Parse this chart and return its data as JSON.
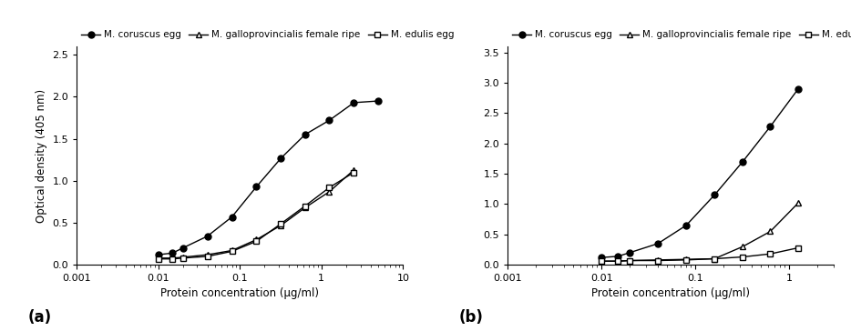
{
  "panel_a": {
    "coruscus_egg_x": [
      0.01,
      0.015,
      0.02,
      0.04,
      0.08,
      0.16,
      0.32,
      0.63,
      1.25,
      2.5,
      5.0
    ],
    "coruscus_egg_y": [
      0.12,
      0.14,
      0.2,
      0.34,
      0.57,
      0.93,
      1.27,
      1.55,
      1.72,
      1.93,
      1.95
    ],
    "galloprov_x": [
      0.01,
      0.015,
      0.02,
      0.04,
      0.08,
      0.16,
      0.32,
      0.63,
      1.25,
      2.5
    ],
    "galloprov_y": [
      0.08,
      0.08,
      0.09,
      0.12,
      0.17,
      0.3,
      0.47,
      0.68,
      0.87,
      1.13
    ],
    "edulis_x": [
      0.01,
      0.015,
      0.02,
      0.04,
      0.08,
      0.16,
      0.32,
      0.63,
      1.25,
      2.5
    ],
    "edulis_y": [
      0.07,
      0.07,
      0.08,
      0.1,
      0.16,
      0.28,
      0.49,
      0.7,
      0.92,
      1.1
    ],
    "ylim": [
      0.0,
      2.6
    ],
    "yticks": [
      0.0,
      0.5,
      1.0,
      1.5,
      2.0,
      2.5
    ],
    "xlim": [
      0.001,
      10
    ],
    "label": "(a)"
  },
  "panel_b": {
    "coruscus_egg_x": [
      0.01,
      0.015,
      0.02,
      0.04,
      0.08,
      0.16,
      0.32,
      0.63,
      1.25
    ],
    "coruscus_egg_y": [
      0.12,
      0.14,
      0.2,
      0.35,
      0.65,
      1.15,
      1.7,
      2.28,
      2.9
    ],
    "galloprov_x": [
      0.01,
      0.015,
      0.02,
      0.04,
      0.08,
      0.16,
      0.32,
      0.63,
      1.25
    ],
    "galloprov_y": [
      0.06,
      0.06,
      0.07,
      0.08,
      0.09,
      0.1,
      0.3,
      0.55,
      1.02
    ],
    "edulis_x": [
      0.01,
      0.015,
      0.02,
      0.04,
      0.08,
      0.16,
      0.32,
      0.63,
      1.25
    ],
    "edulis_y": [
      0.06,
      0.06,
      0.07,
      0.07,
      0.08,
      0.1,
      0.13,
      0.18,
      0.28
    ],
    "ylim": [
      0.0,
      3.6
    ],
    "yticks": [
      0.0,
      0.5,
      1.0,
      1.5,
      2.0,
      2.5,
      3.0,
      3.5
    ],
    "xlim": [
      0.001,
      3.0
    ],
    "label": "(b)"
  },
  "legend_labels": [
    "M. coruscus egg",
    "M. galloprovincialis female ripe",
    "M. edulis egg"
  ],
  "xlabel": "Protein concentration (μg/ml)",
  "ylabel": "Optical density (405 nm)",
  "background_color": "#ffffff",
  "fontsize_label": 8,
  "fontsize_legend": 7.5,
  "fontsize_axis_label": 8.5
}
